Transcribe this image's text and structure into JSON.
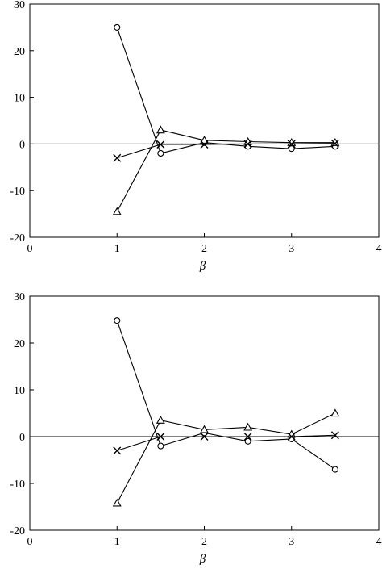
{
  "chart_data": [
    {
      "type": "line",
      "xlabel": "β",
      "xlim": [
        0,
        4
      ],
      "ylim": [
        -20,
        30
      ],
      "xticks": [
        "0",
        "1",
        "2",
        "3",
        "4"
      ],
      "yticks": [
        "-20",
        "-10",
        "0",
        "10",
        "20",
        "30"
      ],
      "grid": false,
      "zero_line": true,
      "x": [
        1,
        1.5,
        2,
        2.5,
        3,
        3.5
      ],
      "series": [
        {
          "marker": "circle",
          "values": [
            25,
            -2,
            0.3,
            -0.5,
            -1,
            -0.5
          ]
        },
        {
          "marker": "triangle",
          "values": [
            -14.5,
            3,
            0.8,
            0.5,
            0.3,
            0.3
          ]
        },
        {
          "marker": "cross",
          "values": [
            -3,
            -0.1,
            -0.1,
            0,
            0,
            0.1
          ]
        }
      ]
    },
    {
      "type": "line",
      "xlabel": "β",
      "xlim": [
        0,
        4
      ],
      "ylim": [
        -20,
        30
      ],
      "xticks": [
        "0",
        "1",
        "2",
        "3",
        "4"
      ],
      "yticks": [
        "-20",
        "-10",
        "0",
        "10",
        "20",
        "30"
      ],
      "grid": false,
      "zero_line": true,
      "x": [
        1,
        1.5,
        2,
        2.5,
        3,
        3.5
      ],
      "series": [
        {
          "marker": "circle",
          "values": [
            24.8,
            -2,
            0.8,
            -1,
            -0.5,
            -7
          ]
        },
        {
          "marker": "triangle",
          "values": [
            -14.2,
            3.5,
            1.5,
            2,
            0.5,
            5
          ]
        },
        {
          "marker": "cross",
          "values": [
            -3,
            0,
            0,
            0,
            0,
            0.3
          ]
        }
      ]
    }
  ]
}
